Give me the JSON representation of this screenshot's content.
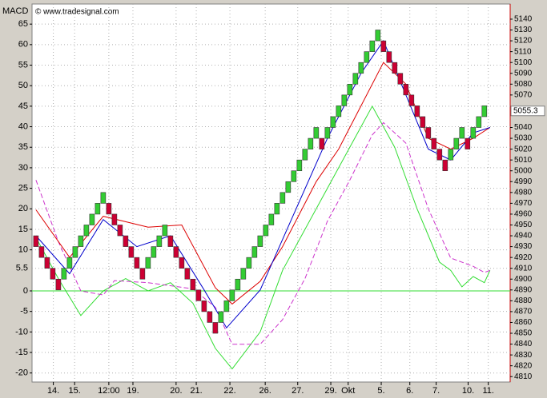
{
  "chart_data": {
    "type": "renko",
    "title": "MACD",
    "subtitle": "© www.tradesignal.com",
    "xlim": [
      -0.7,
      84.6
    ],
    "xticks": [
      {
        "value": 3.1,
        "label": "14."
      },
      {
        "value": 6.9,
        "label": "15."
      },
      {
        "value": 13,
        "label": "12:00"
      },
      {
        "value": 17.3,
        "label": "19."
      },
      {
        "value": 25,
        "label": "20."
      },
      {
        "value": 28.6,
        "label": "21."
      },
      {
        "value": 34.6,
        "label": "22."
      },
      {
        "value": 40.9,
        "label": "26."
      },
      {
        "value": 46.7,
        "label": "27."
      },
      {
        "value": 52.6,
        "label": "29."
      },
      {
        "value": 55.7,
        "label": "Okt"
      },
      {
        "value": 61.6,
        "label": "5."
      },
      {
        "value": 66.7,
        "label": "6."
      },
      {
        "value": 71.4,
        "label": "7."
      },
      {
        "value": 77.1,
        "label": "10."
      },
      {
        "value": 80.7,
        "label": "11."
      }
    ],
    "ylim": [
      -22.2,
      69.9
    ],
    "yticks": [
      65,
      60,
      55,
      50,
      45,
      40,
      35,
      30,
      25,
      20,
      15,
      10,
      0,
      -5,
      -10,
      -15,
      -20
    ],
    "current_macd": 5.5,
    "y2lim": [
      4805,
      5154
    ],
    "y2ticks": [
      4810,
      4820,
      4830,
      4840,
      4850,
      4860,
      4870,
      4880,
      4890,
      4900,
      4910,
      4920,
      4930,
      4940,
      4950,
      4960,
      4970,
      4980,
      4990,
      5000,
      5010,
      5020,
      5030,
      5040,
      5070,
      5080,
      5090,
      5100,
      5110,
      5120,
      5130,
      5140
    ],
    "last_price": 5055.3,
    "grid": true,
    "up_color": "#33cc33",
    "down_color": "#cc0033",
    "bricks": {
      "open": [
        4940,
        4930,
        4920,
        4910,
        4900,
        4900,
        4910,
        4920,
        4930,
        4940,
        4950,
        4960,
        4970,
        4970,
        4960,
        4950,
        4940,
        4930,
        4920,
        4910,
        4910,
        4920,
        4930,
        4940,
        4940,
        4930,
        4920,
        4910,
        4900,
        4890,
        4880,
        4870,
        4860,
        4860,
        4870,
        4880,
        4890,
        4900,
        4910,
        4920,
        4930,
        4940,
        4950,
        4960,
        4970,
        4980,
        4990,
        5000,
        5010,
        5020,
        5030,
        5030,
        5030,
        5040,
        5050,
        5060,
        5070,
        5080,
        5090,
        5100,
        5110,
        5120,
        5120,
        5110,
        5100,
        5090,
        5080,
        5070,
        5060,
        5050,
        5040,
        5030,
        5020,
        5010,
        5010,
        5020,
        5030,
        5030,
        5030,
        5040,
        5050
      ],
      "close": [
        4930,
        4920,
        4910,
        4900,
        4890,
        4910,
        4920,
        4930,
        4940,
        4950,
        4960,
        4970,
        4980,
        4960,
        4950,
        4940,
        4930,
        4920,
        4910,
        4900,
        4920,
        4930,
        4940,
        4950,
        4930,
        4920,
        4910,
        4900,
        4890,
        4880,
        4870,
        4860,
        4850,
        4870,
        4880,
        4890,
        4900,
        4910,
        4920,
        4930,
        4940,
        4950,
        4960,
        4970,
        4980,
        4990,
        5000,
        5010,
        5020,
        5030,
        5040,
        5020,
        5040,
        5050,
        5060,
        5070,
        5080,
        5090,
        5100,
        5110,
        5120,
        5130,
        5110,
        5100,
        5090,
        5080,
        5070,
        5060,
        5050,
        5040,
        5030,
        5020,
        5010,
        5000,
        5020,
        5030,
        5040,
        5020,
        5040,
        5050,
        5060
      ]
    },
    "series": [
      {
        "color": "#33dd33",
        "axis": "y",
        "x": [
          0,
          4,
          8,
          12,
          16,
          20,
          24,
          28,
          32,
          35,
          40,
          44,
          48,
          52,
          56,
          60,
          64,
          68,
          72,
          74,
          76,
          78,
          80,
          81
        ],
        "values": [
          13,
          3,
          -6,
          0,
          3,
          0,
          2,
          -3,
          -14,
          -19,
          -10,
          5,
          15,
          25,
          35,
          45,
          35,
          20,
          7,
          5,
          1,
          3.5,
          2,
          5
        ]
      },
      {
        "color": "#cc33cc",
        "axis": "y",
        "dashed": true,
        "x": [
          0,
          4,
          8,
          12,
          14,
          20,
          28,
          32,
          35,
          40,
          44,
          48,
          52,
          56,
          60,
          62,
          66,
          70,
          74,
          78,
          80,
          81
        ],
        "values": [
          27,
          12,
          0,
          -1,
          2.5,
          2,
          0.5,
          -4,
          -13,
          -13,
          -7,
          3,
          17,
          27,
          38,
          41,
          36,
          20,
          8,
          6,
          4.5,
          5
        ]
      },
      {
        "color": "#dd0000",
        "axis": "y2",
        "x": [
          0,
          6,
          12,
          20,
          26,
          32,
          35,
          40,
          44,
          50,
          54,
          58,
          62,
          66,
          70,
          74,
          78,
          81
        ],
        "values": [
          4964,
          4920,
          4958,
          4948,
          4950,
          4892,
          4877,
          4898,
          4930,
          4990,
          5020,
          5060,
          5100,
          5080,
          5030,
          5020,
          5030,
          5040
        ]
      },
      {
        "color": "#0000cc",
        "axis": "y2",
        "x": [
          0,
          6,
          12,
          18,
          24,
          30,
          34,
          40,
          46,
          52,
          58,
          62,
          66,
          70,
          74,
          78,
          81
        ],
        "values": [
          4940,
          4905,
          4955,
          4930,
          4940,
          4890,
          4855,
          4890,
          4960,
          5030,
          5090,
          5120,
          5070,
          5020,
          5010,
          5035,
          5040
        ]
      }
    ]
  }
}
